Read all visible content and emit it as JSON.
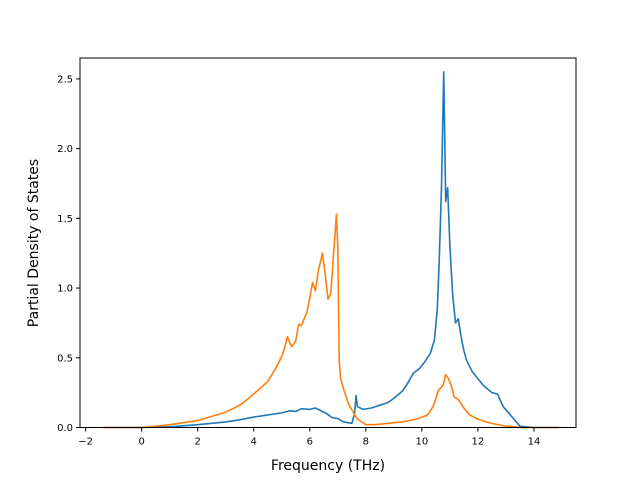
{
  "chart_data": {
    "type": "line",
    "title": "",
    "xlabel": "Frequency (THz)",
    "ylabel": "Partial Density of States",
    "xlim": [
      -2.2,
      15.5
    ],
    "ylim": [
      0,
      2.65
    ],
    "xticks": [
      -2,
      0,
      2,
      4,
      6,
      8,
      10,
      12,
      14
    ],
    "xtick_labels": [
      "−2",
      "0",
      "2",
      "4",
      "6",
      "8",
      "10",
      "12",
      "14"
    ],
    "yticks": [
      0.0,
      0.5,
      1.0,
      1.5,
      2.0,
      2.5
    ],
    "ytick_labels": [
      "0.0",
      "0.5",
      "1.0",
      "1.5",
      "2.0",
      "2.5"
    ],
    "grid": false,
    "legend": "none",
    "series": [
      {
        "color": "#1f77b4",
        "x": [
          -1.4,
          0,
          1,
          2,
          3,
          3.5,
          4,
          4.5,
          5,
          5.3,
          5.5,
          5.7,
          6.0,
          6.2,
          6.4,
          6.6,
          6.8,
          7.0,
          7.2,
          7.5,
          7.6,
          7.65,
          7.7,
          7.9,
          8.2,
          8.5,
          8.8,
          9.0,
          9.3,
          9.5,
          9.7,
          9.9,
          10.1,
          10.3,
          10.45,
          10.55,
          10.62,
          10.7,
          10.78,
          10.85,
          10.92,
          11.0,
          11.1,
          11.2,
          11.3,
          11.4,
          11.5,
          11.6,
          11.8,
          12.0,
          12.2,
          12.5,
          12.7,
          12.9,
          13.2,
          13.5,
          14,
          14.9
        ],
        "y": [
          0,
          0,
          0.005,
          0.02,
          0.04,
          0.055,
          0.075,
          0.09,
          0.105,
          0.12,
          0.115,
          0.135,
          0.13,
          0.14,
          0.12,
          0.1,
          0.07,
          0.065,
          0.04,
          0.03,
          0.1,
          0.23,
          0.15,
          0.13,
          0.14,
          0.16,
          0.18,
          0.21,
          0.26,
          0.32,
          0.39,
          0.42,
          0.47,
          0.53,
          0.63,
          0.85,
          1.2,
          1.72,
          2.55,
          1.62,
          1.72,
          1.3,
          0.95,
          0.75,
          0.78,
          0.65,
          0.55,
          0.48,
          0.4,
          0.35,
          0.3,
          0.25,
          0.24,
          0.15,
          0.08,
          0.01,
          0,
          0
        ]
      },
      {
        "color": "#ff7f0e",
        "x": [
          -1.4,
          0,
          1,
          2,
          2.5,
          3,
          3.5,
          3.7,
          4,
          4.5,
          4.8,
          5.0,
          5.1,
          5.2,
          5.35,
          5.5,
          5.6,
          5.7,
          5.9,
          6.0,
          6.1,
          6.2,
          6.3,
          6.45,
          6.55,
          6.65,
          6.75,
          6.85,
          6.9,
          6.95,
          7.0,
          7.05,
          7.1,
          7.2,
          7.4,
          7.7,
          8.0,
          8.3,
          8.8,
          9.3,
          9.8,
          10.2,
          10.4,
          10.6,
          10.75,
          10.85,
          10.95,
          11.05,
          11.15,
          11.3,
          11.5,
          11.7,
          12.0,
          12.3,
          12.6,
          13.0,
          13.6,
          14.1,
          14.9
        ],
        "y": [
          0,
          0,
          0.02,
          0.05,
          0.08,
          0.11,
          0.16,
          0.19,
          0.24,
          0.33,
          0.43,
          0.51,
          0.57,
          0.65,
          0.58,
          0.62,
          0.74,
          0.73,
          0.83,
          0.93,
          1.04,
          0.98,
          1.12,
          1.25,
          1.1,
          0.92,
          0.96,
          1.25,
          1.38,
          1.53,
          1.3,
          0.48,
          0.35,
          0.28,
          0.16,
          0.06,
          0.02,
          0.02,
          0.03,
          0.04,
          0.06,
          0.09,
          0.15,
          0.27,
          0.3,
          0.38,
          0.35,
          0.3,
          0.22,
          0.2,
          0.14,
          0.09,
          0.06,
          0.04,
          0.025,
          0.01,
          0,
          0,
          0
        ]
      }
    ]
  }
}
